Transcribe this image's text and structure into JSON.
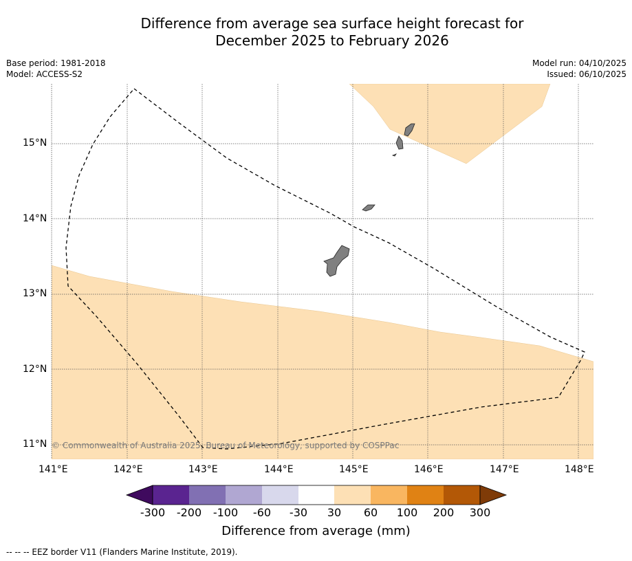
{
  "title_line1": "Difference from average sea surface height forecast for",
  "title_line2": "December 2025 to February 2026",
  "base_period": "Base period: 1981-2018",
  "model": "Model: ACCESS-S2",
  "model_run": "Model run: 04/10/2025",
  "issued": "Issued: 06/10/2025",
  "copyright": "© Commonwealth of Australia 2025, Bureau of Meteorology, supported by COSPPac",
  "footer": "--  --  -- EEZ border V11 (Flanders Marine Institute, 2019).",
  "lat_labels": [
    "15°N",
    "14°N",
    "13°N",
    "12°N",
    "11°N"
  ],
  "lon_labels": [
    "141°E",
    "142°E",
    "143°E",
    "144°E",
    "145°E",
    "146°E",
    "147°E",
    "148°E"
  ],
  "colorbar": {
    "title": "Difference from average (mm)",
    "tick_labels": [
      "-300",
      "-200",
      "-100",
      "-60",
      "-30",
      "30",
      "60",
      "100",
      "200",
      "300"
    ],
    "colors": [
      "#3f0a5e",
      "#5a2490",
      "#8170b3",
      "#b0a7d2",
      "#d8d8ec",
      "#ffffff",
      "#fde0b5",
      "#f9b660",
      "#e08214",
      "#b35806",
      "#7f3b08"
    ]
  },
  "map": {
    "lon_range": [
      141,
      148.2
    ],
    "lat_range": [
      10.8,
      15.8
    ],
    "land_color": "#808080",
    "anomaly_fill": "#fde0b5"
  }
}
